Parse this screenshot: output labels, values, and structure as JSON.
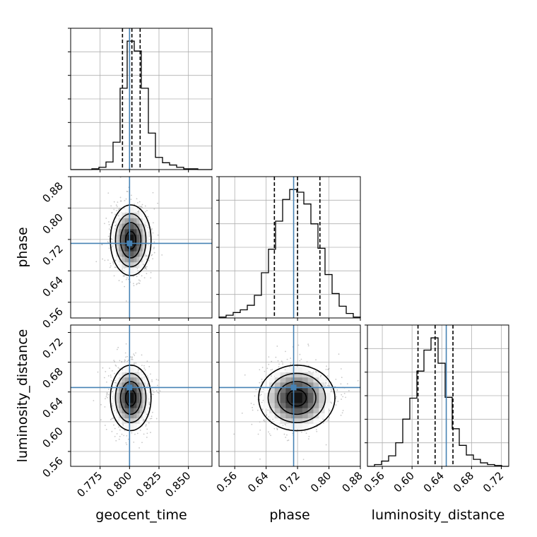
{
  "chart_data": {
    "type": "corner",
    "parameters": [
      "geocent_time",
      "phase",
      "luminosity_distance"
    ],
    "truths": [
      0.8,
      0.71,
      0.646
    ],
    "colors": {
      "truth": "#4682b4",
      "hist": "#000000",
      "grid": "#b0b0b0",
      "scatter": "#9a9a9a"
    },
    "axes": [
      {
        "name": "geocent_time",
        "xlabel": "geocent_time",
        "range": [
          0.75,
          0.87
        ],
        "ticks": [
          0.775,
          0.8,
          0.825,
          0.85
        ],
        "tick_labels": [
          "0.775",
          "0.800",
          "0.825",
          "0.850"
        ]
      },
      {
        "name": "phase",
        "xlabel": "phase",
        "ylabel": "phase",
        "range": [
          0.52,
          0.88
        ],
        "ticks": [
          0.56,
          0.64,
          0.72,
          0.8,
          0.88
        ],
        "tick_labels": [
          "0.56",
          "0.64",
          "0.72",
          "0.80",
          "0.88"
        ]
      },
      {
        "name": "luminosity_distance",
        "xlabel": "luminosity_distance",
        "ylabel": "luminosity_distance",
        "range": [
          0.54,
          0.73
        ],
        "ticks": [
          0.56,
          0.6,
          0.64,
          0.68,
          0.72
        ],
        "tick_labels": [
          "0.56",
          "0.60",
          "0.64",
          "0.68",
          "0.72"
        ]
      }
    ],
    "marginals": [
      {
        "param": "geocent_time",
        "bin_edges": [
          0.75,
          0.756,
          0.762,
          0.768,
          0.774,
          0.78,
          0.786,
          0.792,
          0.798,
          0.804,
          0.81,
          0.816,
          0.822,
          0.828,
          0.834,
          0.84,
          0.846,
          0.852,
          0.858,
          0.864,
          0.87
        ],
        "counts": [
          0,
          0,
          0,
          1,
          3,
          10,
          36,
          107,
          169,
          156,
          107,
          48,
          16,
          9,
          6,
          3,
          1,
          1,
          0,
          0
        ],
        "quantiles": [
          0.794,
          0.802,
          0.809
        ]
      },
      {
        "param": "phase",
        "bin_edges": [
          0.52,
          0.538,
          0.556,
          0.574,
          0.592,
          0.61,
          0.628,
          0.646,
          0.664,
          0.682,
          0.7,
          0.718,
          0.736,
          0.754,
          0.772,
          0.79,
          0.808,
          0.826,
          0.844,
          0.862,
          0.88
        ],
        "counts": [
          1,
          3,
          6,
          9,
          14,
          25,
          50,
          76,
          107,
          131,
          142,
          139,
          126,
          104,
          77,
          48,
          27,
          13,
          5,
          1
        ],
        "quantiles": [
          0.661,
          0.72,
          0.777
        ]
      },
      {
        "param": "luminosity_distance",
        "bin_edges": [
          0.54,
          0.5495,
          0.559,
          0.5685,
          0.578,
          0.5875,
          0.597,
          0.6065,
          0.616,
          0.6255,
          0.635,
          0.6445,
          0.654,
          0.6635,
          0.673,
          0.6825,
          0.692,
          0.7015,
          0.711,
          0.7205,
          0.73
        ],
        "counts": [
          0,
          2,
          6,
          12,
          27,
          54,
          78,
          109,
          133,
          147,
          118,
          79,
          43,
          24,
          13,
          8,
          4,
          2,
          1,
          0
        ],
        "quantiles": [
          0.608,
          0.631,
          0.655
        ]
      }
    ],
    "joint_2d": [
      {
        "x": "geocent_time",
        "y": "phase",
        "mean": [
          0.801,
          0.718
        ],
        "sigma": [
          0.008,
          0.045
        ],
        "levels_sigma": [
          0.5,
          1.0,
          1.5,
          2.0
        ]
      },
      {
        "x": "geocent_time",
        "y": "luminosity_distance",
        "mean": [
          0.801,
          0.632
        ],
        "sigma": [
          0.008,
          0.022
        ],
        "levels_sigma": [
          0.5,
          1.0,
          1.5,
          2.0
        ]
      },
      {
        "x": "phase",
        "y": "luminosity_distance",
        "mean": [
          0.718,
          0.632
        ],
        "sigma": [
          0.045,
          0.022
        ],
        "levels_sigma": [
          0.5,
          1.0,
          1.5,
          2.0
        ]
      }
    ],
    "grid": true
  }
}
